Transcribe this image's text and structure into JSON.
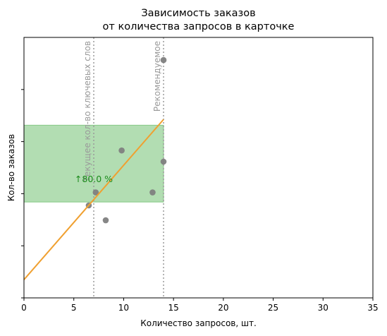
{
  "chart_data": {
    "type": "scatter",
    "title_lines": [
      "Зависимость заказов",
      "от количества запросов в карточке"
    ],
    "xlabel": "Количество запросов, шт.",
    "ylabel": "Кол-во заказов",
    "xlim": [
      0,
      35
    ],
    "x_ticks": [
      0,
      5,
      10,
      15,
      20,
      25,
      30,
      35
    ],
    "ylim": [
      0,
      1
    ],
    "y_tick_labels_shown": false,
    "y_ticks_count": 5,
    "grid": false,
    "points": [
      {
        "x": 6.5,
        "y": 0.355
      },
      {
        "x": 7.2,
        "y": 0.405
      },
      {
        "x": 8.2,
        "y": 0.298
      },
      {
        "x": 9.8,
        "y": 0.566
      },
      {
        "x": 12.9,
        "y": 0.405
      },
      {
        "x": 14.0,
        "y": 0.523
      },
      {
        "x": 14.0,
        "y": 0.913
      }
    ],
    "point_color": "#7f7f7f",
    "trend_line": {
      "x": [
        0,
        14
      ],
      "y": [
        0.07,
        0.685
      ],
      "color": "#f0a030"
    },
    "vertical_lines": [
      {
        "x": 7.0,
        "label": "Текущее кол-во ключевых слов",
        "color": "#9a9a9a"
      },
      {
        "x": 14.0,
        "label": "Рекомендуемое",
        "color": "#9a9a9a"
      }
    ],
    "highlight_region": {
      "x": [
        0,
        14
      ],
      "y": [
        0.368,
        0.663
      ],
      "color": "#66bb66"
    },
    "annotation": {
      "text": "↑80.0 %",
      "x": 7.0,
      "y": 0.455,
      "color": "#1a8a1a"
    }
  }
}
